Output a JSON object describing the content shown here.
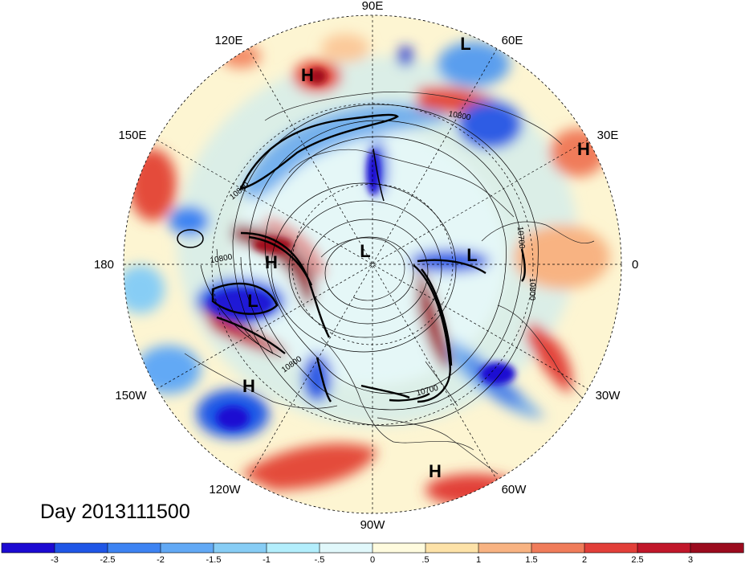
{
  "map": {
    "projection": "north-polar-stereographic",
    "date_label": "Day 2013111500",
    "longitude_labels": {
      "lon_90E": "90E",
      "lon_60E": "60E",
      "lon_30E": "30E",
      "lon_0": "0",
      "lon_30W": "30W",
      "lon_60W": "60W",
      "lon_90W": "90W",
      "lon_120W": "120W",
      "lon_150W": "150W",
      "lon_180": "180",
      "lon_150E": "150E",
      "lon_120E": "120E"
    },
    "pressure_centers": [
      {
        "key": "H",
        "region": "east-siberia-north"
      },
      {
        "key": "L",
        "region": "west-siberia"
      },
      {
        "key": "H",
        "region": "middle-east"
      },
      {
        "key": "H",
        "region": "kamchatka"
      },
      {
        "key": "L",
        "region": "north-pole"
      },
      {
        "key": "L",
        "region": "scandinavia"
      },
      {
        "key": "L",
        "region": "gulf-of-alaska"
      },
      {
        "key": "H",
        "region": "east-pacific"
      },
      {
        "key": "H",
        "region": "south-atlantic"
      }
    ],
    "contour_labels": {
      "c_10800_a": "10800",
      "c_10800_b": "10800",
      "c_10800_c": "10800",
      "c_10700_a": "10700",
      "c_10800_d": "10800",
      "c_10800_e": "10800",
      "c_10700_b": "10700"
    },
    "colors": {
      "deep_blue": "#1717c8",
      "mid_blue": "#3d7ef0",
      "light_blue": "#8ed2f5",
      "pale_cyan": "#d9f5fb",
      "pale_yellow": "#fdf5d2",
      "peach": "#f7b88a",
      "red": "#e44b3b",
      "dark_red": "#a10a1e"
    }
  },
  "colorbar": {
    "tick_labels": [
      "-3",
      "-2.5",
      "-2",
      "-1.5",
      "-1",
      "-.5",
      "0",
      ".5",
      "1",
      "1.5",
      "2",
      "2.5",
      "3"
    ],
    "colors": [
      "#1c0ad2",
      "#1f56e6",
      "#3d83f2",
      "#62a9f5",
      "#87cdf5",
      "#b3eefc",
      "#e1f8fb",
      "#fffbde",
      "#fde2a8",
      "#f8b382",
      "#f07c5a",
      "#e23f39",
      "#c1172a",
      "#9b0b1e"
    ]
  }
}
